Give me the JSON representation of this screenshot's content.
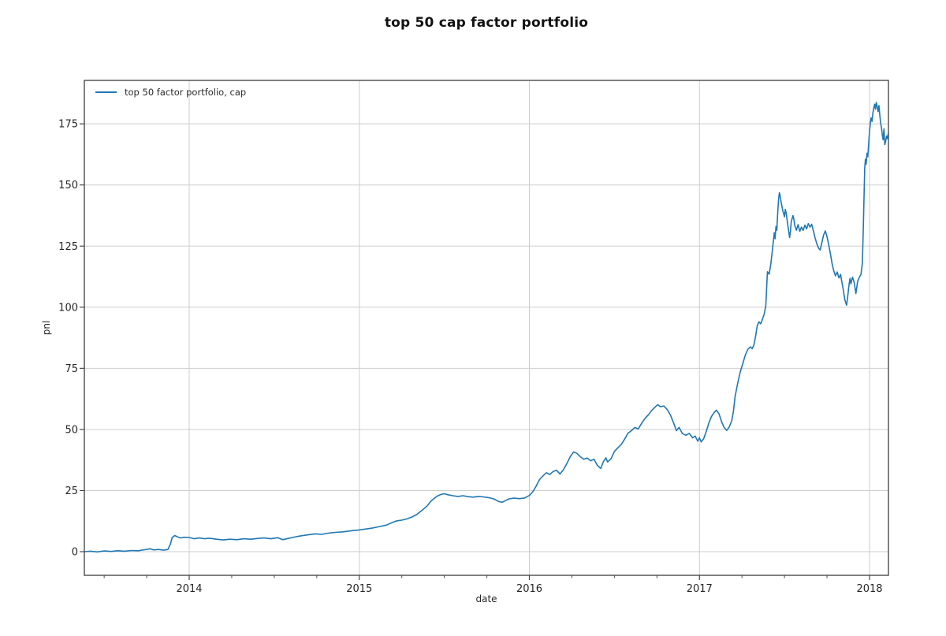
{
  "title": "top 50 cap factor portfolio",
  "legend": {
    "label": "top 50 factor portfolio, cap"
  },
  "colors": {
    "line": "#1f77b4",
    "grid": "#cdcdcd",
    "spine": "#4a4a4a",
    "text": "#262626"
  },
  "chart_data": {
    "type": "line",
    "title": "top 50 cap factor portfolio",
    "xlabel": "date",
    "ylabel": "pnl",
    "legend_entries": [
      "top 50 factor portfolio, cap"
    ],
    "legend_position": "upper left",
    "grid": true,
    "xlim": [
      2013.3835,
      2018.1113
    ],
    "ylim": [
      -9.67,
      192.78
    ],
    "xticks": [
      2014,
      2015,
      2016,
      2017,
      2018
    ],
    "xtick_labels": [
      "2014",
      "2015",
      "2016",
      "2017",
      "2018"
    ],
    "x_minor_tick_step": 0.25,
    "yticks": [
      0,
      25,
      50,
      75,
      100,
      125,
      150,
      175
    ],
    "ytick_labels": [
      "0",
      "25",
      "50",
      "75",
      "100",
      "125",
      "150",
      "175"
    ],
    "series": [
      {
        "name": "top 50 factor portfolio, cap",
        "color": "#1f77b4",
        "points": [
          [
            2013.383,
            0
          ],
          [
            2013.42,
            0.2
          ],
          [
            2013.46,
            -0.1
          ],
          [
            2013.5,
            0.3
          ],
          [
            2013.54,
            0.1
          ],
          [
            2013.58,
            0.4
          ],
          [
            2013.62,
            0.2
          ],
          [
            2013.66,
            0.5
          ],
          [
            2013.7,
            0.4
          ],
          [
            2013.74,
            0.8
          ],
          [
            2013.77,
            1.2
          ],
          [
            2013.79,
            0.7
          ],
          [
            2013.82,
            0.9
          ],
          [
            2013.85,
            0.6
          ],
          [
            2013.875,
            0.9
          ],
          [
            2013.89,
            3.2
          ],
          [
            2013.9,
            5.8
          ],
          [
            2013.915,
            6.6
          ],
          [
            2013.93,
            6.1
          ],
          [
            2013.95,
            5.6
          ],
          [
            2013.97,
            5.9
          ],
          [
            2014,
            5.8
          ],
          [
            2014.03,
            5.3
          ],
          [
            2014.06,
            5.6
          ],
          [
            2014.09,
            5.3
          ],
          [
            2014.12,
            5.5
          ],
          [
            2014.16,
            5.1
          ],
          [
            2014.2,
            4.8
          ],
          [
            2014.24,
            5.1
          ],
          [
            2014.28,
            4.9
          ],
          [
            2014.32,
            5.3
          ],
          [
            2014.36,
            5.1
          ],
          [
            2014.4,
            5.4
          ],
          [
            2014.44,
            5.6
          ],
          [
            2014.48,
            5.3
          ],
          [
            2014.52,
            5.7
          ],
          [
            2014.55,
            4.9
          ],
          [
            2014.58,
            5.4
          ],
          [
            2014.62,
            6
          ],
          [
            2014.66,
            6.5
          ],
          [
            2014.7,
            6.9
          ],
          [
            2014.74,
            7.3
          ],
          [
            2014.78,
            7.1
          ],
          [
            2014.82,
            7.6
          ],
          [
            2014.86,
            7.9
          ],
          [
            2014.9,
            8.1
          ],
          [
            2014.95,
            8.5
          ],
          [
            2015,
            8.9
          ],
          [
            2015.04,
            9.3
          ],
          [
            2015.08,
            9.7
          ],
          [
            2015.12,
            10.3
          ],
          [
            2015.16,
            10.9
          ],
          [
            2015.19,
            11.8
          ],
          [
            2015.22,
            12.6
          ],
          [
            2015.25,
            12.9
          ],
          [
            2015.28,
            13.4
          ],
          [
            2015.31,
            14.2
          ],
          [
            2015.34,
            15.3
          ],
          [
            2015.37,
            17
          ],
          [
            2015.4,
            18.8
          ],
          [
            2015.42,
            20.6
          ],
          [
            2015.44,
            21.8
          ],
          [
            2015.46,
            22.8
          ],
          [
            2015.48,
            23.4
          ],
          [
            2015.5,
            23.7
          ],
          [
            2015.52,
            23.3
          ],
          [
            2015.55,
            22.9
          ],
          [
            2015.58,
            22.6
          ],
          [
            2015.61,
            22.9
          ],
          [
            2015.64,
            22.5
          ],
          [
            2015.67,
            22.3
          ],
          [
            2015.7,
            22.6
          ],
          [
            2015.73,
            22.4
          ],
          [
            2015.76,
            22.1
          ],
          [
            2015.79,
            21.6
          ],
          [
            2015.82,
            20.5
          ],
          [
            2015.84,
            20.2
          ],
          [
            2015.86,
            20.9
          ],
          [
            2015.88,
            21.6
          ],
          [
            2015.91,
            21.9
          ],
          [
            2015.94,
            21.7
          ],
          [
            2015.97,
            21.9
          ],
          [
            2016,
            23
          ],
          [
            2016.02,
            24.5
          ],
          [
            2016.04,
            26.8
          ],
          [
            2016.06,
            29.5
          ],
          [
            2016.08,
            31
          ],
          [
            2016.1,
            32.3
          ],
          [
            2016.12,
            31.6
          ],
          [
            2016.14,
            32.8
          ],
          [
            2016.16,
            33.3
          ],
          [
            2016.18,
            31.8
          ],
          [
            2016.2,
            33.5
          ],
          [
            2016.22,
            36
          ],
          [
            2016.24,
            38.8
          ],
          [
            2016.26,
            40.8
          ],
          [
            2016.28,
            40.2
          ],
          [
            2016.3,
            38.8
          ],
          [
            2016.32,
            37.8
          ],
          [
            2016.34,
            38.3
          ],
          [
            2016.36,
            37.2
          ],
          [
            2016.38,
            37.8
          ],
          [
            2016.4,
            35.3
          ],
          [
            2016.42,
            34
          ],
          [
            2016.435,
            36.8
          ],
          [
            2016.45,
            38.4
          ],
          [
            2016.46,
            36.7
          ],
          [
            2016.48,
            38
          ],
          [
            2016.5,
            41
          ],
          [
            2016.52,
            42.5
          ],
          [
            2016.54,
            43.8
          ],
          [
            2016.56,
            46
          ],
          [
            2016.58,
            48.5
          ],
          [
            2016.6,
            49.5
          ],
          [
            2016.62,
            50.8
          ],
          [
            2016.64,
            50.2
          ],
          [
            2016.66,
            52.5
          ],
          [
            2016.68,
            54.5
          ],
          [
            2016.7,
            56
          ],
          [
            2016.72,
            57.8
          ],
          [
            2016.74,
            59.2
          ],
          [
            2016.755,
            60.2
          ],
          [
            2016.77,
            59.3
          ],
          [
            2016.79,
            59.6
          ],
          [
            2016.81,
            58.2
          ],
          [
            2016.83,
            55.8
          ],
          [
            2016.85,
            52.3
          ],
          [
            2016.865,
            49.5
          ],
          [
            2016.88,
            50.8
          ],
          [
            2016.9,
            48.3
          ],
          [
            2016.92,
            47.6
          ],
          [
            2016.94,
            48.4
          ],
          [
            2016.96,
            46.6
          ],
          [
            2016.975,
            47.3
          ],
          [
            2016.99,
            45.2
          ],
          [
            2017,
            46.6
          ],
          [
            2017.01,
            44.9
          ],
          [
            2017.025,
            46.2
          ],
          [
            2017.04,
            49.2
          ],
          [
            2017.055,
            52.5
          ],
          [
            2017.07,
            55.2
          ],
          [
            2017.085,
            56.8
          ],
          [
            2017.1,
            57.9
          ],
          [
            2017.115,
            56.4
          ],
          [
            2017.13,
            53.2
          ],
          [
            2017.145,
            50.8
          ],
          [
            2017.16,
            49.6
          ],
          [
            2017.175,
            51
          ],
          [
            2017.19,
            53.5
          ],
          [
            2017.2,
            57.5
          ],
          [
            2017.21,
            63.5
          ],
          [
            2017.225,
            69
          ],
          [
            2017.24,
            73.5
          ],
          [
            2017.255,
            77
          ],
          [
            2017.27,
            80.5
          ],
          [
            2017.285,
            82.8
          ],
          [
            2017.3,
            83.8
          ],
          [
            2017.31,
            83
          ],
          [
            2017.32,
            84.5
          ],
          [
            2017.33,
            88
          ],
          [
            2017.34,
            92.5
          ],
          [
            2017.35,
            94
          ],
          [
            2017.36,
            93.2
          ],
          [
            2017.37,
            95
          ],
          [
            2017.38,
            97
          ],
          [
            2017.39,
            100.5
          ],
          [
            2017.395,
            108
          ],
          [
            2017.4,
            114.5
          ],
          [
            2017.41,
            113.5
          ],
          [
            2017.42,
            118
          ],
          [
            2017.43,
            124
          ],
          [
            2017.44,
            130.5
          ],
          [
            2017.445,
            128
          ],
          [
            2017.45,
            133
          ],
          [
            2017.455,
            131.5
          ],
          [
            2017.46,
            138.5
          ],
          [
            2017.465,
            144
          ],
          [
            2017.47,
            146.8
          ],
          [
            2017.475,
            145.5
          ],
          [
            2017.48,
            143
          ],
          [
            2017.49,
            139.5
          ],
          [
            2017.5,
            137
          ],
          [
            2017.505,
            140
          ],
          [
            2017.51,
            138.5
          ],
          [
            2017.52,
            133.5
          ],
          [
            2017.53,
            128.5
          ],
          [
            2017.535,
            131
          ],
          [
            2017.54,
            135
          ],
          [
            2017.55,
            137.5
          ],
          [
            2017.555,
            136
          ],
          [
            2017.56,
            133.5
          ],
          [
            2017.57,
            131.5
          ],
          [
            2017.58,
            133.8
          ],
          [
            2017.59,
            131
          ],
          [
            2017.6,
            132.8
          ],
          [
            2017.61,
            131.4
          ],
          [
            2017.62,
            133.6
          ],
          [
            2017.63,
            132
          ],
          [
            2017.64,
            134.2
          ],
          [
            2017.65,
            132.8
          ],
          [
            2017.66,
            133.9
          ],
          [
            2017.67,
            131.2
          ],
          [
            2017.68,
            128.4
          ],
          [
            2017.69,
            126
          ],
          [
            2017.7,
            124.2
          ],
          [
            2017.71,
            123.4
          ],
          [
            2017.72,
            126.5
          ],
          [
            2017.73,
            129.5
          ],
          [
            2017.74,
            131.2
          ],
          [
            2017.75,
            128.8
          ],
          [
            2017.76,
            125.6
          ],
          [
            2017.77,
            121.8
          ],
          [
            2017.78,
            117.8
          ],
          [
            2017.79,
            114.8
          ],
          [
            2017.8,
            112.8
          ],
          [
            2017.81,
            114.4
          ],
          [
            2017.82,
            112
          ],
          [
            2017.83,
            113.4
          ],
          [
            2017.835,
            111.2
          ],
          [
            2017.845,
            107.5
          ],
          [
            2017.855,
            103
          ],
          [
            2017.865,
            100.8
          ],
          [
            2017.872,
            104.5
          ],
          [
            2017.878,
            108.5
          ],
          [
            2017.885,
            111.8
          ],
          [
            2017.89,
            109.5
          ],
          [
            2017.9,
            112.3
          ],
          [
            2017.91,
            110
          ],
          [
            2017.92,
            105.6
          ],
          [
            2017.93,
            110.5
          ],
          [
            2017.94,
            112.2
          ],
          [
            2017.95,
            113.5
          ],
          [
            2017.958,
            118
          ],
          [
            2017.963,
            131
          ],
          [
            2017.968,
            146
          ],
          [
            2017.972,
            157
          ],
          [
            2017.976,
            160.5
          ],
          [
            2017.98,
            158.5
          ],
          [
            2017.985,
            163
          ],
          [
            2017.99,
            161.5
          ],
          [
            2017.995,
            167
          ],
          [
            2018,
            172
          ],
          [
            2018.005,
            175.5
          ],
          [
            2018.01,
            177.5
          ],
          [
            2018.015,
            176
          ],
          [
            2018.02,
            179.5
          ],
          [
            2018.025,
            181.5
          ],
          [
            2018.03,
            183
          ],
          [
            2018.035,
            181
          ],
          [
            2018.04,
            183.8
          ],
          [
            2018.045,
            182
          ],
          [
            2018.05,
            180
          ],
          [
            2018.055,
            182.5
          ],
          [
            2018.06,
            179
          ],
          [
            2018.065,
            175.5
          ],
          [
            2018.07,
            173.5
          ],
          [
            2018.075,
            170.5
          ],
          [
            2018.08,
            168.5
          ],
          [
            2018.085,
            173
          ],
          [
            2018.09,
            166.5
          ],
          [
            2018.095,
            168
          ],
          [
            2018.1,
            170
          ],
          [
            2018.105,
            169
          ],
          [
            2018.11,
            171
          ]
        ]
      }
    ]
  }
}
